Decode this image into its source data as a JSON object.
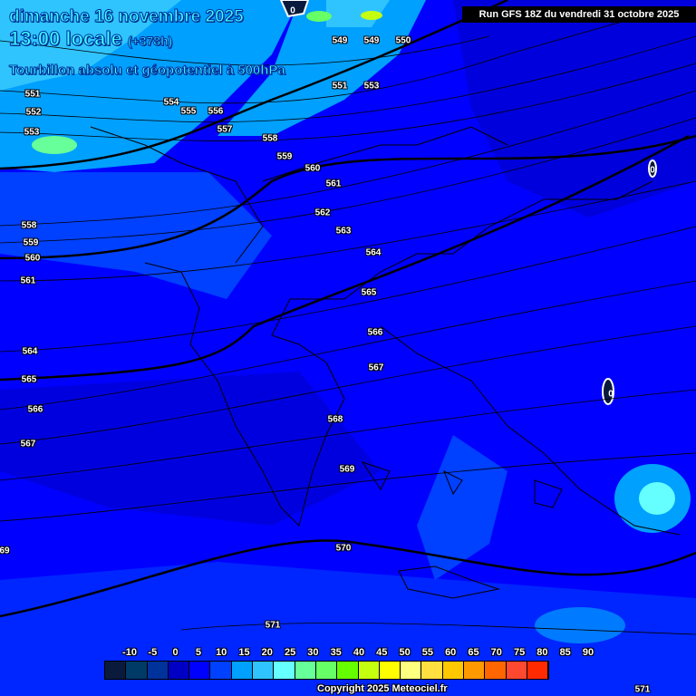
{
  "header": {
    "date": "dimanche 16 novembre 2025",
    "time": "13:00 locale",
    "lead": "(+378h)",
    "field": "Tourbillon absolu et géopotentiel à 500hPa",
    "run": "Run GFS 18Z du vendredi 31 octobre 2025"
  },
  "contour_labels": [
    "549",
    "549",
    "550",
    "551",
    "553",
    "551",
    "552",
    "553",
    "554",
    "555",
    "556",
    "557",
    "558",
    "559",
    "560",
    "561",
    "562",
    "563",
    "564",
    "565",
    "566",
    "567",
    "568",
    "569",
    "570",
    "571",
    "571",
    "558",
    "559",
    "560",
    "561",
    "564",
    "565",
    "566",
    "567",
    "69"
  ],
  "zero_labels": [
    "0",
    "0",
    "0"
  ],
  "legend": {
    "ticks": [
      "-10",
      "-5",
      "0",
      "5",
      "10",
      "15",
      "20",
      "25",
      "30",
      "35",
      "40",
      "45",
      "50",
      "55",
      "60",
      "65",
      "70",
      "75",
      "80",
      "85",
      "90"
    ],
    "colors": [
      "#0a1a3c",
      "#003a66",
      "#00329c",
      "#0000c4",
      "#0000ff",
      "#0040ff",
      "#00a0ff",
      "#30c4ff",
      "#66ffff",
      "#66ff99",
      "#66ff66",
      "#66ff00",
      "#c4ff10",
      "#ffff00",
      "#ffff80",
      "#ffe040",
      "#ffc800",
      "#ff9900",
      "#ff6600",
      "#ff4830",
      "#ff2a00"
    ]
  },
  "copyright": "Copyright 2025 Meteociel.fr"
}
